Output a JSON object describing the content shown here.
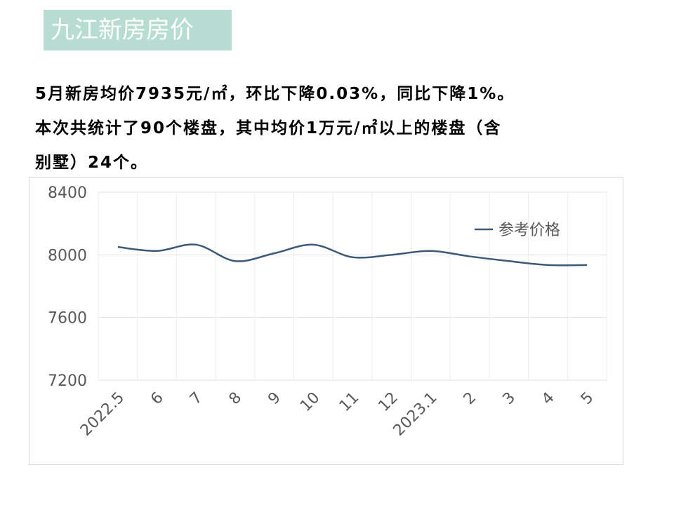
{
  "title": "九江新房房价",
  "summary": {
    "line1": "5月新房均价7935元/㎡，环比下降0.03%，同比下降1%。",
    "line2": "本次共统计了90个楼盘，其中均价1万元/㎡以上的楼盘（含",
    "line3": "别墅）24个。"
  },
  "chart_data": {
    "type": "line",
    "categories": [
      "2022.5",
      "6",
      "7",
      "8",
      "9",
      "10",
      "11",
      "12",
      "2023.1",
      "2",
      "3",
      "4",
      "5"
    ],
    "series": [
      {
        "name": "参考价格",
        "values": [
          8050,
          8025,
          8065,
          7960,
          8010,
          8065,
          7985,
          8000,
          8025,
          7990,
          7960,
          7935,
          7935
        ],
        "color": "#3b5a78"
      }
    ],
    "yticks": [
      8400,
      8000,
      7600,
      7200
    ],
    "ylim": [
      7200,
      8400
    ],
    "grid": true,
    "legend_position": "top-right",
    "smooth": true
  }
}
